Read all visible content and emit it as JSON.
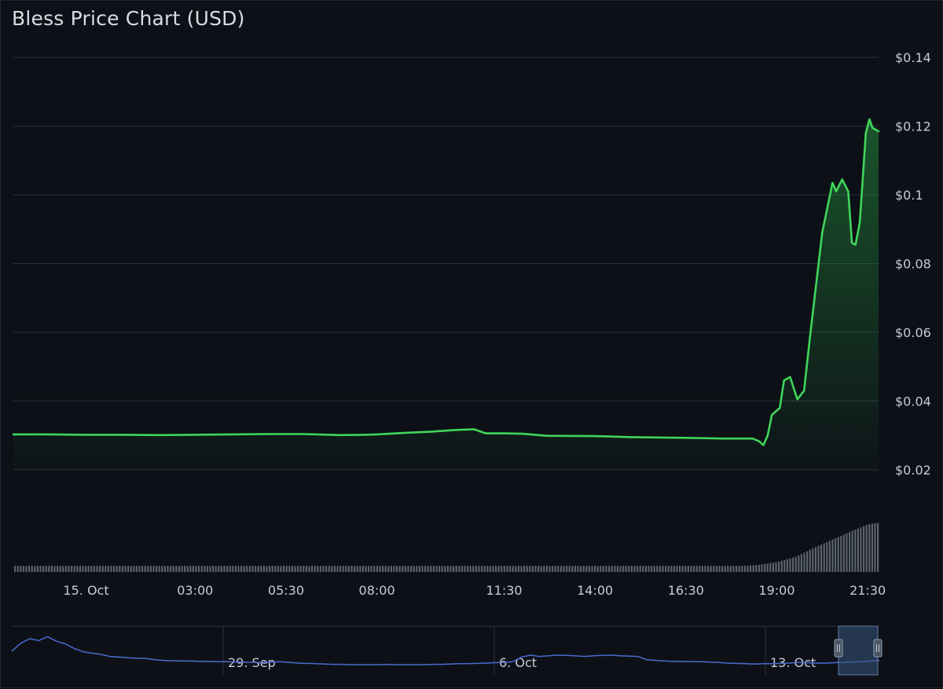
{
  "chart_title": "Bless Price Chart (USD)",
  "colors": {
    "background": "#0d1117",
    "grid": "#2a313b",
    "price_line": "#3fd65a",
    "area_fill": "#2aa745",
    "volume_bar": "#5b636e",
    "navigator_line": "#4a6bd0",
    "navigator_mask": "#3a5680"
  },
  "chart_data": {
    "type": "line",
    "title": "Bless Price Chart (USD)",
    "xlabel": "",
    "ylabel": "",
    "y_unit": "USD",
    "ylim": [
      0.02,
      0.14
    ],
    "y_ticks": [
      0.02,
      0.04,
      0.06,
      0.08,
      0.1,
      0.12,
      0.14
    ],
    "y_tick_labels": [
      "$0.02",
      "$0.04",
      "$0.06",
      "$0.08",
      "$0.1",
      "$0.12",
      "$0.14"
    ],
    "xlim": [
      "14 Oct 22:00",
      "15 Oct 21:48"
    ],
    "x_ticks": [
      {
        "t": "15 Oct 00:00",
        "label": "15. Oct"
      },
      {
        "t": "15 Oct 03:00",
        "label": "03:00"
      },
      {
        "t": "15 Oct 05:30",
        "label": "05:30"
      },
      {
        "t": "15 Oct 08:00",
        "label": "08:00"
      },
      {
        "t": "15 Oct 11:30",
        "label": "11:30"
      },
      {
        "t": "15 Oct 14:00",
        "label": "14:00"
      },
      {
        "t": "15 Oct 16:30",
        "label": "16:30"
      },
      {
        "t": "15 Oct 19:00",
        "label": "19:00"
      },
      {
        "t": "15 Oct 21:30",
        "label": "21:30"
      }
    ],
    "grid": true,
    "legend": "none",
    "series": [
      {
        "points": [
          [
            "14 Oct 22:00",
            0.0303
          ],
          [
            "14 Oct 23:00",
            0.0303
          ],
          [
            "15 Oct 00:00",
            0.0302
          ],
          [
            "15 Oct 01:00",
            0.0302
          ],
          [
            "15 Oct 02:00",
            0.0301
          ],
          [
            "15 Oct 03:00",
            0.0302
          ],
          [
            "15 Oct 04:00",
            0.0303
          ],
          [
            "15 Oct 05:00",
            0.0304
          ],
          [
            "15 Oct 06:00",
            0.0304
          ],
          [
            "15 Oct 07:00",
            0.0301
          ],
          [
            "15 Oct 07:40",
            0.0302
          ],
          [
            "15 Oct 08:00",
            0.0303
          ],
          [
            "15 Oct 08:40",
            0.0307
          ],
          [
            "15 Oct 09:30",
            0.0311
          ],
          [
            "15 Oct 10:10",
            0.0316
          ],
          [
            "15 Oct 10:40",
            0.0318
          ],
          [
            "15 Oct 11:00",
            0.0306
          ],
          [
            "15 Oct 11:30",
            0.0306
          ],
          [
            "15 Oct 12:00",
            0.0305
          ],
          [
            "15 Oct 12:40",
            0.0299
          ],
          [
            "15 Oct 14:00",
            0.0298
          ],
          [
            "15 Oct 15:00",
            0.0295
          ],
          [
            "15 Oct 16:30",
            0.0293
          ],
          [
            "15 Oct 17:30",
            0.0291
          ],
          [
            "15 Oct 18:20",
            0.0291
          ],
          [
            "15 Oct 18:30",
            0.0284
          ],
          [
            "15 Oct 18:38",
            0.0272
          ],
          [
            "15 Oct 18:45",
            0.03
          ],
          [
            "15 Oct 18:52",
            0.036
          ],
          [
            "15 Oct 19:05",
            0.038
          ],
          [
            "15 Oct 19:12",
            0.046
          ],
          [
            "15 Oct 19:22",
            0.047
          ],
          [
            "15 Oct 19:34",
            0.0405
          ],
          [
            "15 Oct 19:45",
            0.043
          ],
          [
            "15 Oct 19:55",
            0.059
          ],
          [
            "15 Oct 20:15",
            0.089
          ],
          [
            "15 Oct 20:32",
            0.1035
          ],
          [
            "15 Oct 20:38",
            0.101
          ],
          [
            "15 Oct 20:48",
            0.1045
          ],
          [
            "15 Oct 20:58",
            0.101
          ],
          [
            "15 Oct 21:04",
            0.086
          ],
          [
            "15 Oct 21:10",
            0.0855
          ],
          [
            "15 Oct 21:17",
            0.092
          ],
          [
            "15 Oct 21:27",
            0.118
          ],
          [
            "15 Oct 21:33",
            0.122
          ],
          [
            "15 Oct 21:38",
            0.1195
          ],
          [
            "15 Oct 21:48",
            0.1185
          ]
        ]
      }
    ],
    "volume": {
      "note": "relative trading volume, 0-1 scale, shown as bars under the price plot",
      "levels": [
        [
          "14 Oct 22:00",
          0.12
        ],
        [
          "15 Oct 18:00",
          0.12
        ],
        [
          "15 Oct 18:30",
          0.14
        ],
        [
          "15 Oct 19:00",
          0.2
        ],
        [
          "15 Oct 19:30",
          0.3
        ],
        [
          "15 Oct 20:00",
          0.48
        ],
        [
          "15 Oct 20:30",
          0.64
        ],
        [
          "15 Oct 21:00",
          0.8
        ],
        [
          "15 Oct 21:30",
          0.95
        ],
        [
          "15 Oct 21:48",
          0.98
        ]
      ]
    },
    "navigator": {
      "x_labels": [
        "29. Sep",
        "6. Oct",
        "13. Oct"
      ],
      "selected_range": [
        "14 Oct 22:00",
        "15 Oct 21:48"
      ],
      "profile": [
        0.48,
        0.72,
        0.86,
        0.8,
        0.92,
        0.78,
        0.7,
        0.56,
        0.46,
        0.42,
        0.38,
        0.32,
        0.3,
        0.28,
        0.27,
        0.26,
        0.22,
        0.2,
        0.19,
        0.18,
        0.18,
        0.17,
        0.17,
        0.16,
        0.16,
        0.15,
        0.15,
        0.14,
        0.14,
        0.15,
        0.16,
        0.14,
        0.12,
        0.11,
        0.1,
        0.09,
        0.08,
        0.08,
        0.07,
        0.07,
        0.07,
        0.07,
        0.08,
        0.07,
        0.07,
        0.07,
        0.07,
        0.08,
        0.08,
        0.09,
        0.1,
        0.1,
        0.11,
        0.12,
        0.13,
        0.14,
        0.16,
        0.3,
        0.36,
        0.32,
        0.34,
        0.36,
        0.35,
        0.34,
        0.32,
        0.34,
        0.35,
        0.36,
        0.34,
        0.33,
        0.32,
        0.22,
        0.2,
        0.18,
        0.17,
        0.17,
        0.16,
        0.16,
        0.15,
        0.14,
        0.12,
        0.11,
        0.1,
        0.09,
        0.1,
        0.1,
        0.11,
        0.12,
        0.14,
        0.13,
        0.12,
        0.12,
        0.13,
        0.14,
        0.15,
        0.16,
        0.18,
        0.2
      ]
    }
  }
}
